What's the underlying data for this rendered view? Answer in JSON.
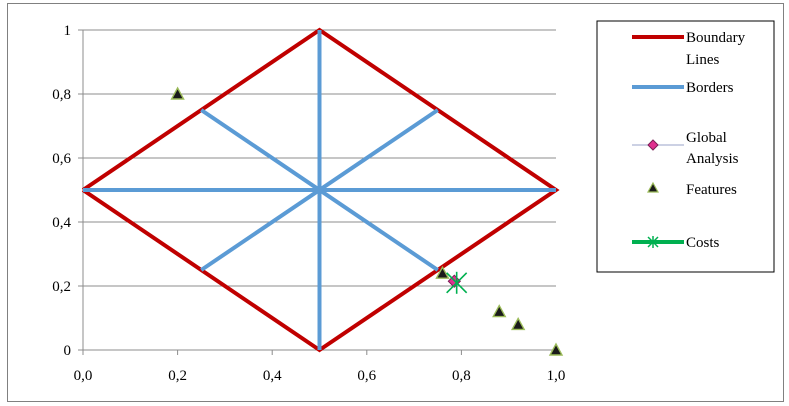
{
  "chart_data": {
    "type": "scatter",
    "xlim": [
      0.0,
      1.0
    ],
    "ylim": [
      0,
      1
    ],
    "x_ticks": [
      "0,0",
      "0,2",
      "0,4",
      "0,6",
      "0,8",
      "1,0"
    ],
    "y_ticks": [
      "0",
      "0,2",
      "0,4",
      "0,6",
      "0,8",
      "1"
    ],
    "grid": "horizontal",
    "legend_position": "right",
    "series": [
      {
        "name": "Boundary Lines",
        "style": "line",
        "color": "#C00000",
        "segments": [
          [
            [
              0.0,
              0.5
            ],
            [
              0.5,
              1.0
            ],
            [
              1.0,
              0.5
            ],
            [
              0.5,
              0.0
            ],
            [
              0.0,
              0.5
            ]
          ]
        ]
      },
      {
        "name": "Borders",
        "style": "line",
        "color": "#5B9BD5",
        "segments": [
          [
            [
              0.5,
              1.0
            ],
            [
              0.5,
              0.0
            ]
          ],
          [
            [
              0.0,
              0.5
            ],
            [
              1.0,
              0.5
            ]
          ],
          [
            [
              0.25,
              0.75
            ],
            [
              0.75,
              0.25
            ]
          ],
          [
            [
              0.25,
              0.25
            ],
            [
              0.75,
              0.75
            ]
          ]
        ]
      },
      {
        "name": "Global Analysis",
        "style": "marker",
        "marker": "diamond",
        "color": "#E0308F",
        "points": [
          [
            0.785,
            0.215
          ]
        ]
      },
      {
        "name": "Features",
        "style": "marker",
        "marker": "triangle",
        "color": "#1a1a1a",
        "edge_color": "#9BBB59",
        "points": [
          [
            0.2,
            0.8
          ],
          [
            0.76,
            0.24
          ],
          [
            0.88,
            0.12
          ],
          [
            0.92,
            0.08
          ],
          [
            1.0,
            0.0
          ]
        ]
      },
      {
        "name": "Costs",
        "style": "marker",
        "marker": "star",
        "color": "#00B050",
        "points": [
          [
            0.79,
            0.21
          ]
        ]
      }
    ]
  },
  "legend": {
    "boundary_line1": "Boundary",
    "boundary_line2": "Lines",
    "borders": "Borders",
    "global_line1": "Global",
    "global_line2": "Analysis",
    "features": "Features",
    "costs": "Costs"
  }
}
